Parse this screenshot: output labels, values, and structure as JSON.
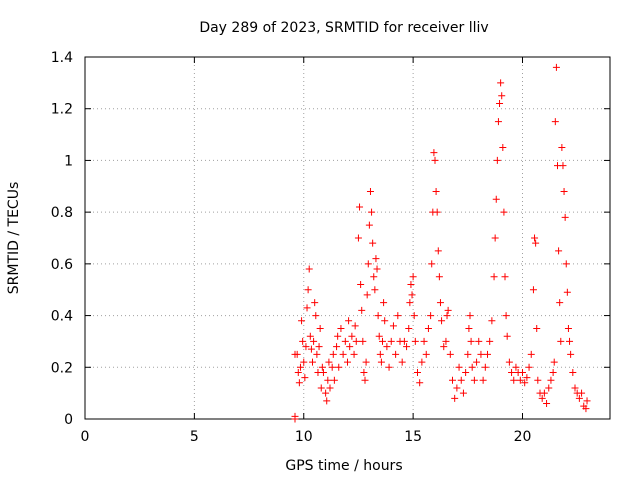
{
  "chart_data": {
    "type": "scatter",
    "title": "Day 289 of 2023, SRMTID for receiver lliv",
    "xlabel": "GPS time / hours",
    "ylabel": "SRMTID / TECUs",
    "xlim": [
      0,
      24
    ],
    "ylim": [
      0,
      1.4
    ],
    "x_ticks": [
      0,
      5,
      10,
      15,
      20
    ],
    "x_tick_labels": [
      "0",
      "5",
      "10",
      "15",
      "20"
    ],
    "y_ticks": [
      0,
      0.2,
      0.4,
      0.6,
      0.8,
      1.0,
      1.2,
      1.4
    ],
    "y_tick_labels": [
      "0",
      "0.2",
      "0.4",
      "0.6",
      "0.8",
      "1",
      "1.2",
      "1.4"
    ],
    "grid": true,
    "marker": "plus",
    "colors": {
      "series": "#ff0000",
      "axes": "#000000",
      "grid": "#a0a0a0"
    },
    "series": [
      {
        "name": "SRMTID",
        "points": [
          [
            9.6,
            0.0
          ],
          [
            9.6,
            0.01
          ],
          [
            9.6,
            0.25
          ],
          [
            9.7,
            0.25
          ],
          [
            9.75,
            0.18
          ],
          [
            9.8,
            0.14
          ],
          [
            9.85,
            0.2
          ],
          [
            9.9,
            0.38
          ],
          [
            9.95,
            0.3
          ],
          [
            10.0,
            0.22
          ],
          [
            10.05,
            0.16
          ],
          [
            10.1,
            0.28
          ],
          [
            10.15,
            0.43
          ],
          [
            10.2,
            0.5
          ],
          [
            10.25,
            0.58
          ],
          [
            10.3,
            0.32
          ],
          [
            10.35,
            0.27
          ],
          [
            10.4,
            0.22
          ],
          [
            10.45,
            0.3
          ],
          [
            10.5,
            0.45
          ],
          [
            10.55,
            0.4
          ],
          [
            10.6,
            0.25
          ],
          [
            10.65,
            0.18
          ],
          [
            10.7,
            0.28
          ],
          [
            10.75,
            0.35
          ],
          [
            10.8,
            0.12
          ],
          [
            10.85,
            0.2
          ],
          [
            10.9,
            0.18
          ],
          [
            11.0,
            0.1
          ],
          [
            11.05,
            0.07
          ],
          [
            11.1,
            0.15
          ],
          [
            11.15,
            0.22
          ],
          [
            11.2,
            0.12
          ],
          [
            11.3,
            0.2
          ],
          [
            11.35,
            0.25
          ],
          [
            11.4,
            0.15
          ],
          [
            11.5,
            0.28
          ],
          [
            11.55,
            0.32
          ],
          [
            11.6,
            0.2
          ],
          [
            11.7,
            0.35
          ],
          [
            11.8,
            0.25
          ],
          [
            11.9,
            0.3
          ],
          [
            12.0,
            0.22
          ],
          [
            12.05,
            0.38
          ],
          [
            12.1,
            0.28
          ],
          [
            12.2,
            0.32
          ],
          [
            12.3,
            0.25
          ],
          [
            12.35,
            0.36
          ],
          [
            12.4,
            0.3
          ],
          [
            12.5,
            0.7
          ],
          [
            12.55,
            0.82
          ],
          [
            12.6,
            0.52
          ],
          [
            12.65,
            0.42
          ],
          [
            12.7,
            0.3
          ],
          [
            12.75,
            0.18
          ],
          [
            12.8,
            0.15
          ],
          [
            12.85,
            0.22
          ],
          [
            12.9,
            0.48
          ],
          [
            12.95,
            0.6
          ],
          [
            13.0,
            0.75
          ],
          [
            13.05,
            0.88
          ],
          [
            13.1,
            0.8
          ],
          [
            13.15,
            0.68
          ],
          [
            13.2,
            0.55
          ],
          [
            13.25,
            0.5
          ],
          [
            13.3,
            0.62
          ],
          [
            13.35,
            0.58
          ],
          [
            13.4,
            0.4
          ],
          [
            13.45,
            0.32
          ],
          [
            13.5,
            0.25
          ],
          [
            13.55,
            0.22
          ],
          [
            13.6,
            0.3
          ],
          [
            13.65,
            0.45
          ],
          [
            13.7,
            0.38
          ],
          [
            13.8,
            0.28
          ],
          [
            13.9,
            0.2
          ],
          [
            14.0,
            0.3
          ],
          [
            14.1,
            0.36
          ],
          [
            14.2,
            0.25
          ],
          [
            14.3,
            0.4
          ],
          [
            14.4,
            0.3
          ],
          [
            14.5,
            0.22
          ],
          [
            14.6,
            0.3
          ],
          [
            14.7,
            0.28
          ],
          [
            14.8,
            0.35
          ],
          [
            14.85,
            0.45
          ],
          [
            14.9,
            0.52
          ],
          [
            14.95,
            0.48
          ],
          [
            15.0,
            0.55
          ],
          [
            15.05,
            0.4
          ],
          [
            15.1,
            0.3
          ],
          [
            15.2,
            0.18
          ],
          [
            15.3,
            0.14
          ],
          [
            15.4,
            0.22
          ],
          [
            15.5,
            0.3
          ],
          [
            15.6,
            0.25
          ],
          [
            15.7,
            0.35
          ],
          [
            15.8,
            0.4
          ],
          [
            15.85,
            0.6
          ],
          [
            15.9,
            0.8
          ],
          [
            15.95,
            1.03
          ],
          [
            16.0,
            1.0
          ],
          [
            16.05,
            0.88
          ],
          [
            16.1,
            0.8
          ],
          [
            16.15,
            0.65
          ],
          [
            16.2,
            0.55
          ],
          [
            16.25,
            0.45
          ],
          [
            16.3,
            0.38
          ],
          [
            16.4,
            0.28
          ],
          [
            16.5,
            0.3
          ],
          [
            16.55,
            0.4
          ],
          [
            16.6,
            0.42
          ],
          [
            16.7,
            0.25
          ],
          [
            16.8,
            0.15
          ],
          [
            16.9,
            0.08
          ],
          [
            17.0,
            0.12
          ],
          [
            17.1,
            0.2
          ],
          [
            17.2,
            0.15
          ],
          [
            17.3,
            0.1
          ],
          [
            17.4,
            0.18
          ],
          [
            17.5,
            0.25
          ],
          [
            17.55,
            0.35
          ],
          [
            17.6,
            0.4
          ],
          [
            17.65,
            0.3
          ],
          [
            17.7,
            0.2
          ],
          [
            17.8,
            0.15
          ],
          [
            17.9,
            0.22
          ],
          [
            18.0,
            0.3
          ],
          [
            18.1,
            0.25
          ],
          [
            18.2,
            0.15
          ],
          [
            18.3,
            0.2
          ],
          [
            18.4,
            0.25
          ],
          [
            18.5,
            0.3
          ],
          [
            18.6,
            0.38
          ],
          [
            18.7,
            0.55
          ],
          [
            18.75,
            0.7
          ],
          [
            18.8,
            0.85
          ],
          [
            18.85,
            1.0
          ],
          [
            18.9,
            1.15
          ],
          [
            18.95,
            1.22
          ],
          [
            19.0,
            1.3
          ],
          [
            19.05,
            1.25
          ],
          [
            19.1,
            1.05
          ],
          [
            19.15,
            0.8
          ],
          [
            19.2,
            0.55
          ],
          [
            19.25,
            0.4
          ],
          [
            19.3,
            0.32
          ],
          [
            19.4,
            0.22
          ],
          [
            19.5,
            0.18
          ],
          [
            19.6,
            0.15
          ],
          [
            19.7,
            0.2
          ],
          [
            19.8,
            0.18
          ],
          [
            19.9,
            0.15
          ],
          [
            20.0,
            0.18
          ],
          [
            20.1,
            0.14
          ],
          [
            20.2,
            0.16
          ],
          [
            20.3,
            0.2
          ],
          [
            20.4,
            0.25
          ],
          [
            20.5,
            0.5
          ],
          [
            20.55,
            0.7
          ],
          [
            20.6,
            0.68
          ],
          [
            20.65,
            0.35
          ],
          [
            20.7,
            0.15
          ],
          [
            20.8,
            0.1
          ],
          [
            20.9,
            0.08
          ],
          [
            21.0,
            0.1
          ],
          [
            21.1,
            0.06
          ],
          [
            21.2,
            0.12
          ],
          [
            21.3,
            0.15
          ],
          [
            21.4,
            0.18
          ],
          [
            21.45,
            0.22
          ],
          [
            21.5,
            1.15
          ],
          [
            21.55,
            1.36
          ],
          [
            21.6,
            0.98
          ],
          [
            21.65,
            0.65
          ],
          [
            21.7,
            0.45
          ],
          [
            21.75,
            0.3
          ],
          [
            21.8,
            1.05
          ],
          [
            21.85,
            0.98
          ],
          [
            21.9,
            0.88
          ],
          [
            21.95,
            0.78
          ],
          [
            22.0,
            0.6
          ],
          [
            22.05,
            0.49
          ],
          [
            22.1,
            0.35
          ],
          [
            22.15,
            0.3
          ],
          [
            22.2,
            0.25
          ],
          [
            22.3,
            0.18
          ],
          [
            22.4,
            0.12
          ],
          [
            22.5,
            0.1
          ],
          [
            22.6,
            0.08
          ],
          [
            22.7,
            0.1
          ],
          [
            22.8,
            0.05
          ],
          [
            22.9,
            0.04
          ],
          [
            22.95,
            0.07
          ]
        ]
      }
    ]
  }
}
